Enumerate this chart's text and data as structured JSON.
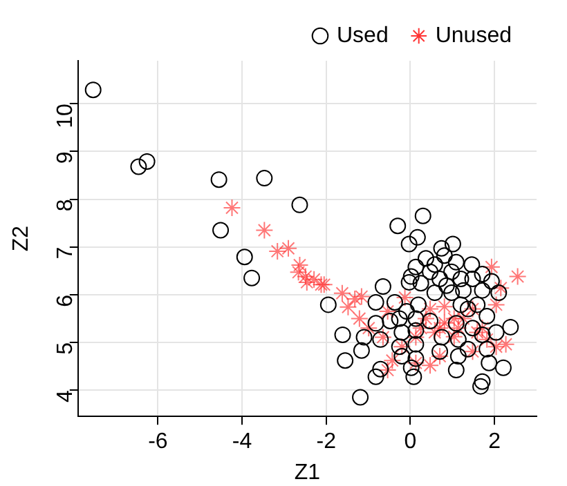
{
  "chart_data": {
    "type": "scatter",
    "xlabel": "Z1",
    "ylabel": "Z2",
    "xlim": [
      -7.9,
      3.0
    ],
    "ylim": [
      3.45,
      10.9
    ],
    "xticks": [
      -6,
      -4,
      -2,
      0,
      2
    ],
    "yticks": [
      4,
      5,
      6,
      7,
      8,
      9,
      10
    ],
    "grid": true,
    "legend": "top right",
    "series": [
      {
        "name": "Used",
        "color": "#000000",
        "marker": "circle",
        "x": [
          -7.54,
          -6.46,
          -6.26,
          -4.55,
          -3.47,
          -2.63,
          -4.51,
          -3.94,
          -3.77,
          -1.95,
          0.3,
          -0.3,
          0.17,
          -0.03,
          1.01,
          0.74,
          0.37,
          0.81,
          1.09,
          1.46,
          0.58,
          0.13,
          0.47,
          0.98,
          1.71,
          0.02,
          0.7,
          1.2,
          1.48,
          1.93,
          0.25,
          0.86,
          -0.65,
          -0.03,
          1.26,
          1.71,
          0.58,
          0.98,
          2.1,
          -0.82,
          -0.37,
          0.19,
          1.2,
          1.59,
          -0.09,
          1.37,
          1.82,
          -0.26,
          0.13,
          -0.82,
          -0.48,
          0.47,
          1.09,
          2.38,
          1.48,
          -1.61,
          -1.1,
          -0.71,
          -0.2,
          0.13,
          0.75,
          1.14,
          1.71,
          2.04,
          -1.16,
          -0.26,
          0.13,
          0.7,
          1.37,
          1.82,
          -1.55,
          -0.2,
          0.13,
          1.14,
          1.87,
          -0.71,
          0.02,
          1.09,
          2.21,
          -0.82,
          0.08,
          1.71,
          1.67,
          -1.19
        ],
        "values": [
          10.29,
          8.68,
          8.79,
          8.41,
          8.44,
          7.88,
          7.35,
          6.79,
          6.35,
          5.79,
          7.65,
          7.44,
          7.2,
          7.06,
          7.06,
          6.97,
          6.76,
          6.82,
          6.68,
          6.63,
          6.63,
          6.58,
          6.48,
          6.48,
          6.43,
          6.38,
          6.33,
          6.33,
          6.33,
          6.28,
          6.24,
          6.19,
          6.17,
          6.26,
          6.09,
          6.09,
          6.04,
          6.04,
          6.04,
          5.84,
          5.84,
          5.79,
          5.79,
          5.79,
          5.65,
          5.7,
          5.55,
          5.5,
          5.5,
          5.4,
          5.45,
          5.45,
          5.4,
          5.32,
          5.3,
          5.16,
          5.11,
          5.06,
          5.21,
          5.25,
          5.11,
          5.06,
          5.16,
          5.21,
          4.83,
          4.91,
          4.96,
          4.81,
          4.86,
          4.86,
          4.62,
          4.71,
          4.66,
          4.71,
          4.57,
          4.44,
          4.47,
          4.42,
          4.47,
          4.28,
          4.28,
          4.18,
          4.08,
          3.85
        ]
      },
      {
        "name": "Unused",
        "color": "#ff3333",
        "marker": "cross",
        "x": [
          -4.24,
          -3.47,
          -3.16,
          -2.9,
          -2.63,
          -2.66,
          -2.46,
          -2.29,
          -2.05,
          -2.49,
          -2.12,
          -1.62,
          -1.32,
          -1.48,
          -1.21,
          -1.16,
          -0.54,
          -0.13,
          0.37,
          0.58,
          0.81,
          1.04,
          1.26,
          1.93,
          2.55,
          2.15,
          2.04,
          2.27,
          2.04,
          0.47,
          -0.54,
          0.13,
          0.7,
          1.48,
          1.82,
          1.71,
          0.13,
          -0.2,
          1.48,
          0.81,
          0.47,
          -0.99,
          -0.65,
          -0.43,
          1.04,
          1.59,
          0.25,
          0.7,
          1.14
        ],
        "values": [
          7.82,
          7.35,
          6.91,
          6.97,
          6.62,
          6.47,
          6.26,
          6.32,
          6.21,
          6.38,
          6.21,
          6.03,
          5.91,
          5.74,
          5.5,
          5.96,
          5.65,
          5.94,
          5.5,
          5.21,
          5.41,
          5.12,
          5.5,
          6.58,
          6.38,
          6.14,
          5.79,
          4.96,
          4.91,
          4.52,
          4.42,
          4.57,
          4.71,
          4.81,
          5.06,
          5.3,
          5.11,
          4.91,
          5.7,
          5.75,
          5.7,
          5.3,
          5.11,
          4.62,
          5.5,
          5.21,
          5.3,
          5.3,
          5.3
        ]
      }
    ]
  }
}
